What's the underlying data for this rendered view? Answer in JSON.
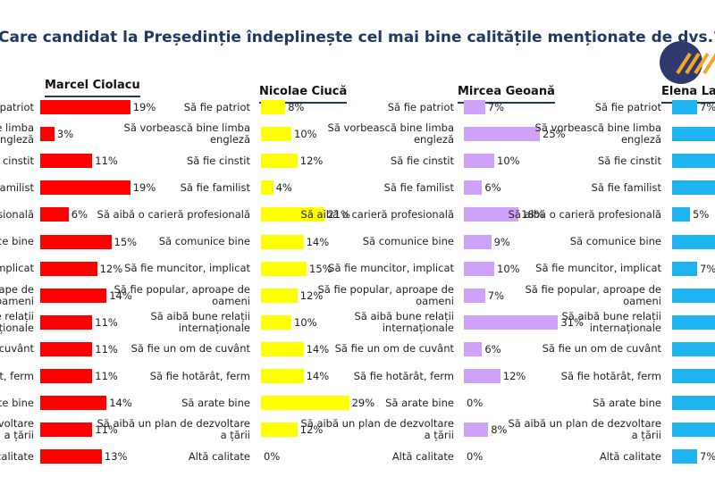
{
  "chart_data": [
    {
      "type": "hbar",
      "title": "Care candidat la Președinție îndeplinește cel mai bine calitățile menționate de dvs.? (I)",
      "subtitle": "Marcel Ciolacu",
      "color": "#ff0000",
      "xlim": [
        0,
        30
      ],
      "categories": [
        "Să fie patriot",
        "Să vorbească bine limba engleză",
        "Să fie cinstit",
        "Să fie familist",
        "Să aibă o carieră profesională",
        "Să comunice bine",
        "Să fie muncitor, implicat",
        "Să fie popular, aproape de oameni",
        "Să aibă bune relații internaționale",
        "Să fie un om de cuvânt",
        "Să fie hotărât, ferm",
        "Să arate bine",
        "Să aibă un plan de dezvoltare a țării",
        "Altă calitate"
      ],
      "values": [
        19,
        3,
        11,
        19,
        6,
        15,
        12,
        14,
        11,
        11,
        11,
        14,
        11,
        13
      ],
      "value_labels": [
        "19%",
        "3%",
        "11%",
        "19%",
        "6%",
        "15%",
        "12%",
        "14%",
        "11%",
        "11%",
        "11%",
        "14%",
        "11%",
        "13%"
      ]
    },
    {
      "type": "hbar",
      "subtitle": "Nicolae Ciucă",
      "color": "#ffff00",
      "xlim": [
        0,
        30
      ],
      "categories": [
        "Să fie patriot",
        "Să vorbească bine limba engleză",
        "Să fie cinstit",
        "Să fie familist",
        "Să aibă o carieră profesională",
        "Să comunice bine",
        "Să fie muncitor, implicat",
        "Să fie popular, aproape de oameni",
        "Să aibă bune relații internaționale",
        "Să fie un om de cuvânt",
        "Să fie hotărât, ferm",
        "Să arate bine",
        "Să aibă un plan de dezvoltare a țării",
        "Altă calitate"
      ],
      "values": [
        8,
        10,
        12,
        4,
        21,
        14,
        15,
        12,
        10,
        14,
        14,
        29,
        12,
        0
      ],
      "value_labels": [
        "8%",
        "10%",
        "12%",
        "4%",
        "21%",
        "14%",
        "15%",
        "12%",
        "10%",
        "14%",
        "14%",
        "29%",
        "12%",
        "0%"
      ]
    },
    {
      "type": "hbar",
      "subtitle": "Mircea Geoană",
      "color": "#cfa2fa",
      "xlim": [
        0,
        30
      ],
      "categories": [
        "Să fie patriot",
        "Să vorbească bine limba engleză",
        "Să fie cinstit",
        "Să fie familist",
        "Să aibă o carieră profesională",
        "Să comunice bine",
        "Să fie muncitor, implicat",
        "Să fie popular, aproape de oameni",
        "Să aibă bune relații internaționale",
        "Să fie un om de cuvânt",
        "Să fie hotărât, ferm",
        "Să arate bine",
        "Să aibă un plan de dezvoltare a țării",
        "Altă calitate"
      ],
      "values": [
        7,
        25,
        10,
        6,
        18,
        9,
        10,
        7,
        31,
        6,
        12,
        0,
        8,
        0
      ],
      "value_labels": [
        "7%",
        "25%",
        "10%",
        "6%",
        "18%",
        "9%",
        "10%",
        "7%",
        "31%",
        "6%",
        "12%",
        "0%",
        "8%",
        "0%"
      ]
    },
    {
      "type": "hbar",
      "subtitle": "Elena Lasconi",
      "color": "#1eb4f0",
      "xlim": [
        0,
        30
      ],
      "categories": [
        "Să fie patriot",
        "Să vorbească bine limba engleză",
        "Să fie cinstit",
        "Să fie familist",
        "Să aibă o carieră profesională",
        "Să comunice bine",
        "Să fie muncitor, implicat",
        "Să fie popular, aproape de oameni",
        "Să aibă bune relații internaționale",
        "Să fie un om de cuvânt",
        "Să fie hotărât, ferm",
        "Să arate bine",
        "Să aibă un plan de dezvoltare a țării",
        "Altă calitate"
      ],
      "values": [
        7,
        15,
        13,
        14,
        5,
        16,
        7,
        14,
        13,
        15,
        12,
        14,
        13,
        7
      ],
      "value_labels": [
        "7%",
        null,
        null,
        null,
        "5%",
        null,
        "7%",
        null,
        null,
        null,
        null,
        null,
        null,
        "7%"
      ]
    }
  ]
}
